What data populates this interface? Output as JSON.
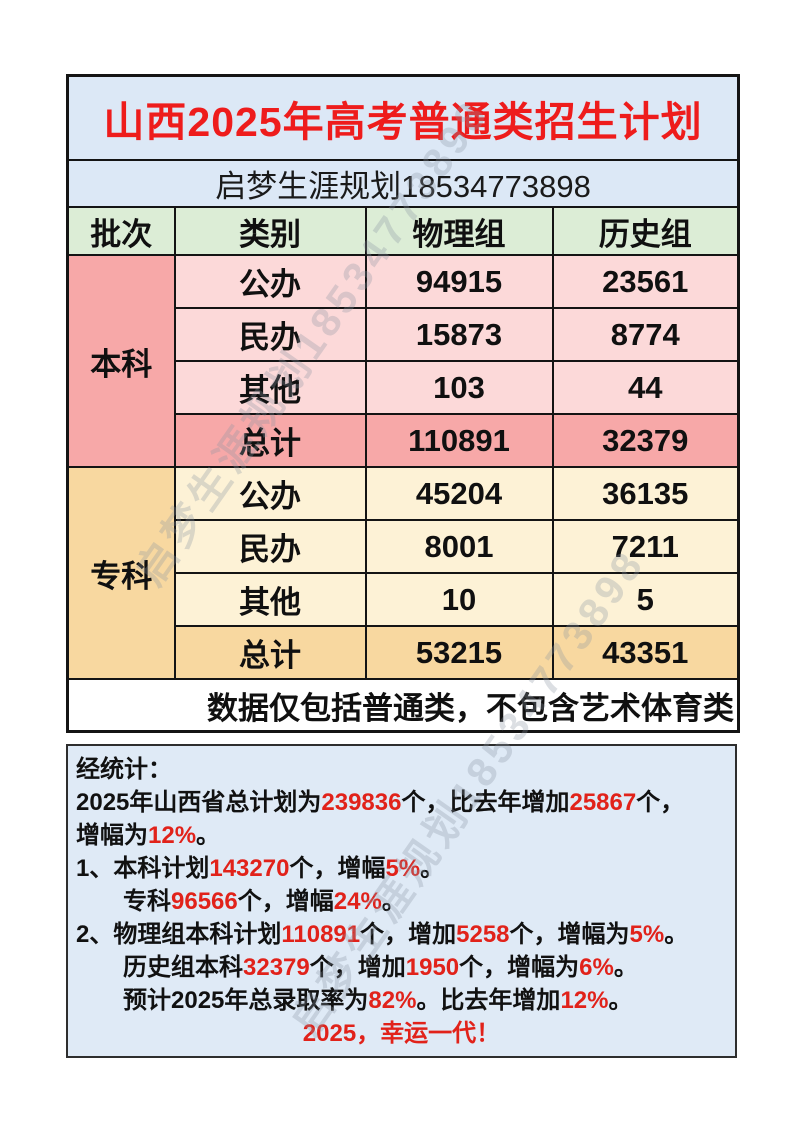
{
  "title": {
    "text": "山西2025年高考普通类招生计划"
  },
  "subtitle": {
    "text": "启梦生涯规划18534773898"
  },
  "watermark": {
    "text": "启梦生涯规划18534773898"
  },
  "colors": {
    "accent_red": "#ee1c1c",
    "stats_red": "#e1221a",
    "light_blue_bg": "#dce8f6",
    "header_green_bg": "#dcedd6",
    "undergrad_pink_dark": "#f7a8a8",
    "undergrad_pink_light": "#fcd9d9",
    "college_orange_dark": "#f8d8a0",
    "college_orange_light": "#fdf2d6"
  },
  "table": {
    "headers": [
      "批次",
      "类别",
      "物理组",
      "历史组"
    ],
    "sections": [
      {
        "name": "本科",
        "rows": [
          {
            "label": "公办",
            "physics": "94915",
            "history": "23561",
            "total": false
          },
          {
            "label": "民办",
            "physics": "15873",
            "history": "8774",
            "total": false
          },
          {
            "label": "其他",
            "physics": "103",
            "history": "44",
            "total": false
          },
          {
            "label": "总计",
            "physics": "110891",
            "history": "32379",
            "total": true
          }
        ]
      },
      {
        "name": "专科",
        "rows": [
          {
            "label": "公办",
            "physics": "45204",
            "history": "36135",
            "total": false
          },
          {
            "label": "民办",
            "physics": "8001",
            "history": "7211",
            "total": false
          },
          {
            "label": "其他",
            "physics": "10",
            "history": "5",
            "total": false
          },
          {
            "label": "总计",
            "physics": "53215",
            "history": "43351",
            "total": true
          }
        ]
      }
    ],
    "note": "数据仅包括普通类，不包含艺术体育类"
  },
  "stats": {
    "lines": [
      {
        "indent": 0,
        "align": "left",
        "segments": [
          {
            "t": "经统计：",
            "red": false
          }
        ]
      },
      {
        "indent": 0,
        "align": "left",
        "segments": [
          {
            "t": "2025年山西省总计划为",
            "red": false
          },
          {
            "t": "239836",
            "red": true
          },
          {
            "t": "个，比去年增加",
            "red": false
          },
          {
            "t": "25867",
            "red": true
          },
          {
            "t": "个，",
            "red": false
          }
        ]
      },
      {
        "indent": 0,
        "align": "left",
        "segments": [
          {
            "t": "增幅为",
            "red": false
          },
          {
            "t": "12%",
            "red": true
          },
          {
            "t": "。",
            "red": false
          }
        ]
      },
      {
        "indent": 0,
        "align": "left",
        "segments": [
          {
            "t": "1、本科计划",
            "red": false
          },
          {
            "t": "143270",
            "red": true
          },
          {
            "t": "个，增幅",
            "red": false
          },
          {
            "t": "5%",
            "red": true
          },
          {
            "t": "。",
            "red": false
          }
        ]
      },
      {
        "indent": 1,
        "align": "left",
        "segments": [
          {
            "t": "专科",
            "red": false
          },
          {
            "t": "96566",
            "red": true
          },
          {
            "t": "个，增幅",
            "red": false
          },
          {
            "t": "24%",
            "red": true
          },
          {
            "t": "。",
            "red": false
          }
        ]
      },
      {
        "indent": 0,
        "align": "left",
        "segments": [
          {
            "t": "2、物理组本科计划",
            "red": false
          },
          {
            "t": "110891",
            "red": true
          },
          {
            "t": "个，增加",
            "red": false
          },
          {
            "t": "5258",
            "red": true
          },
          {
            "t": "个，增幅为",
            "red": false
          },
          {
            "t": "5%",
            "red": true
          },
          {
            "t": "。",
            "red": false
          }
        ]
      },
      {
        "indent": 1,
        "align": "left",
        "segments": [
          {
            "t": "历史组本科",
            "red": false
          },
          {
            "t": "32379",
            "red": true
          },
          {
            "t": "个，增加",
            "red": false
          },
          {
            "t": "1950",
            "red": true
          },
          {
            "t": "个，增幅为",
            "red": false
          },
          {
            "t": "6%",
            "red": true
          },
          {
            "t": "。",
            "red": false
          }
        ]
      },
      {
        "indent": 1,
        "align": "left",
        "segments": [
          {
            "t": "预计2025年总录取率为",
            "red": false
          },
          {
            "t": "82%",
            "red": true
          },
          {
            "t": "。比去年增加",
            "red": false
          },
          {
            "t": "12%",
            "red": true
          },
          {
            "t": "。",
            "red": false
          }
        ]
      },
      {
        "indent": 0,
        "align": "center",
        "segments": [
          {
            "t": "2025，幸运一代！",
            "red": true
          }
        ]
      }
    ]
  }
}
